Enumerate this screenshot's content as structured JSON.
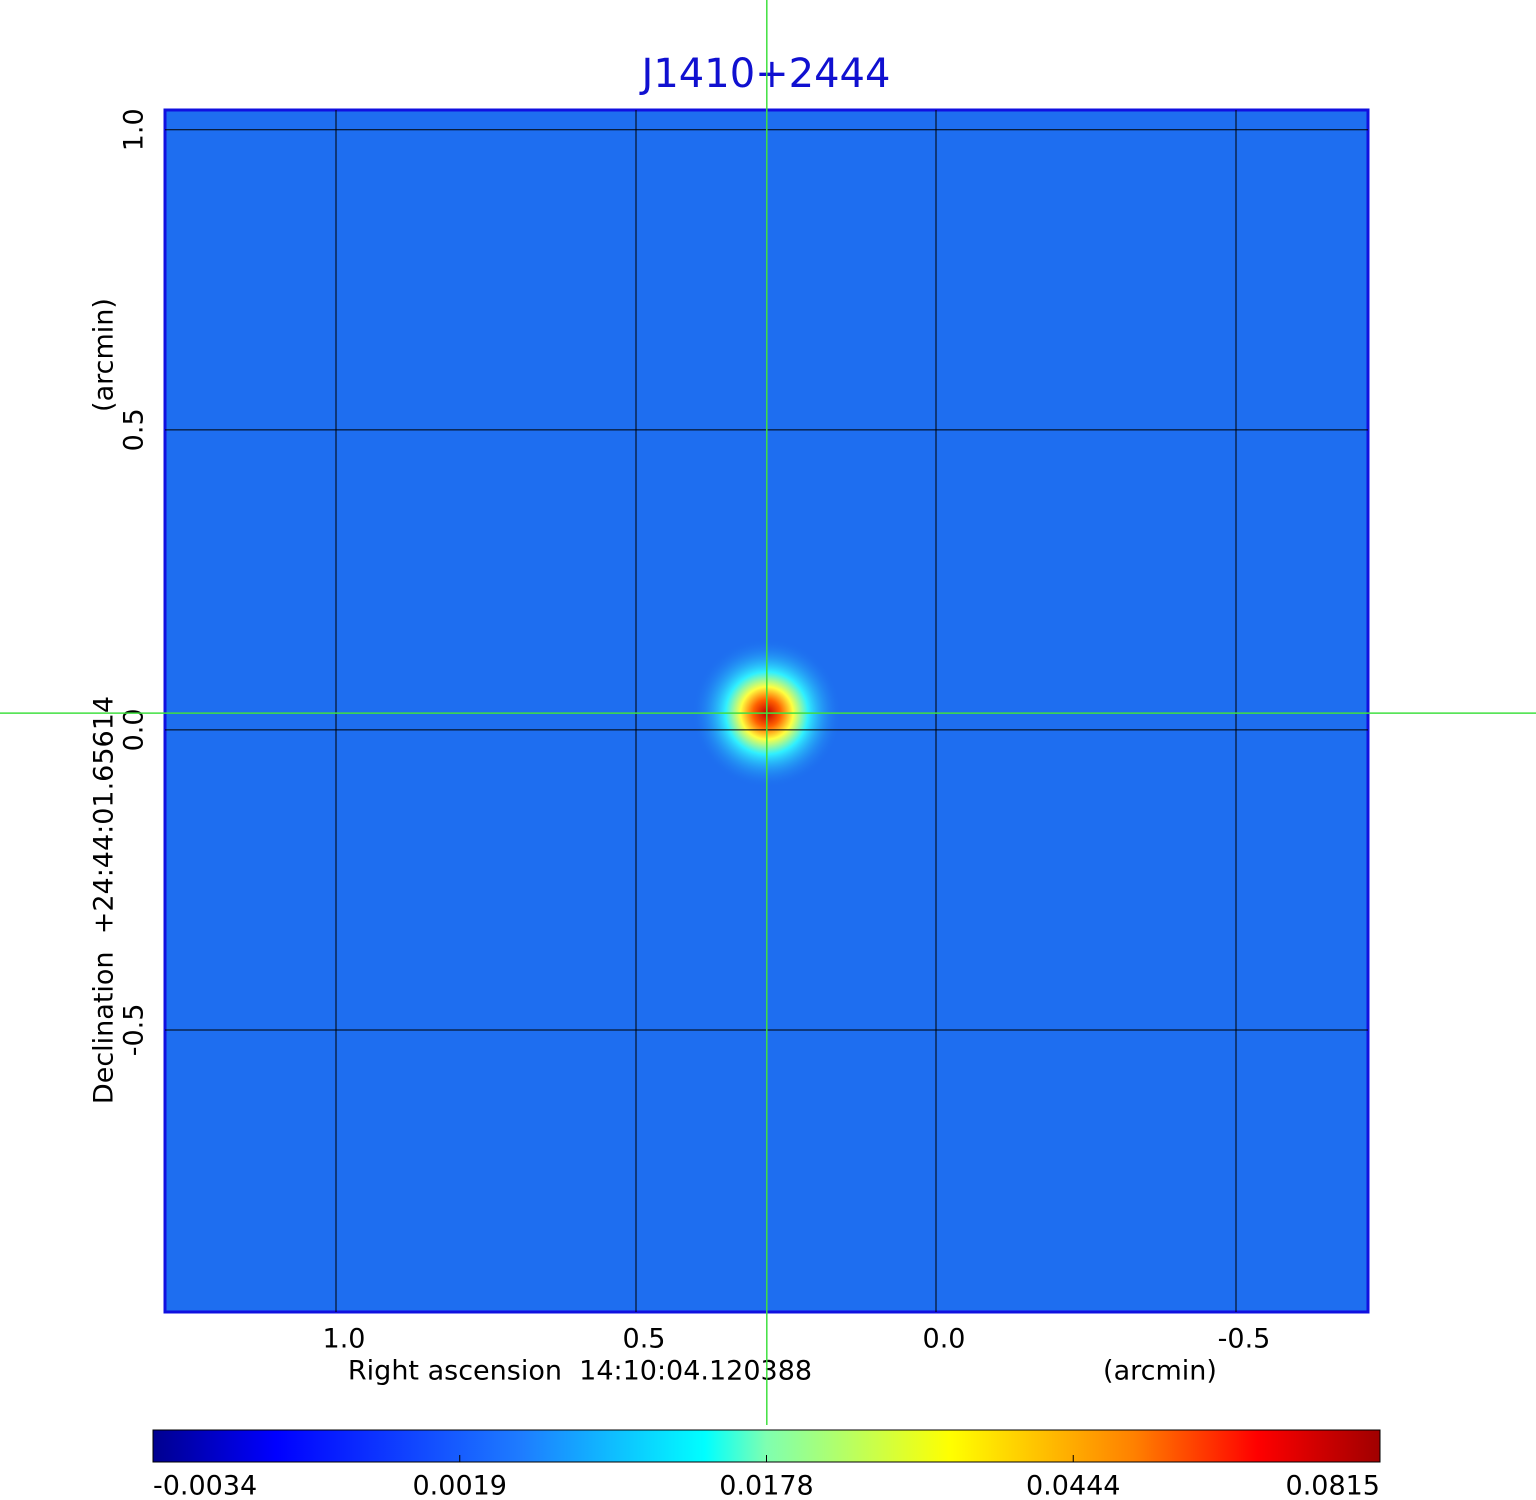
{
  "chart_data": {
    "type": "heatmap",
    "title": "J1410+2444",
    "x_label": "Right ascension  14:10:04.120388",
    "x_unit": "(arcmin)",
    "y_label": "Declination  +24:44:01.65614",
    "y_unit": "(arcmin)",
    "xlim": [
      1.285,
      -0.72
    ],
    "ylim": [
      -0.97,
      1.033
    ],
    "xticks": [
      {
        "value": 1,
        "label": "1.0"
      },
      0.5,
      {
        "value": 0,
        "label": "0.0"
      },
      -0.5
    ],
    "yticks": [
      {
        "value": 1,
        "label": "1.0"
      },
      0.5,
      {
        "value": 0,
        "label": "0.0"
      },
      -0.5
    ],
    "grid": true,
    "crosshair": {
      "x": 0.282,
      "y": 0.028
    },
    "colormap": "jet",
    "colorbar_ticks": [
      -0.0034,
      0.0019,
      0.0178,
      0.0444,
      0.0815
    ]
  }
}
